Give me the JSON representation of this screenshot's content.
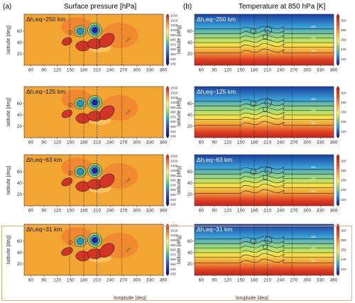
{
  "figure": {
    "left_label": "(a)",
    "left_title": "Surface pressure [hPa]",
    "right_label": "(b)",
    "right_title": "Temperature at 850 hPa [K]"
  },
  "chart_data": {
    "type": "heatmap",
    "panels": [
      {
        "column": "a",
        "resolution_text": "Δh,eq~250 km",
        "delta_km": 250
      },
      {
        "column": "a",
        "resolution_text": "Δh,eq~125 km",
        "delta_km": 125
      },
      {
        "column": "a",
        "resolution_text": "Δh,eq~63 km",
        "delta_km": 63
      },
      {
        "column": "a",
        "resolution_text": "Δh,eq~31 km",
        "delta_km": 31
      },
      {
        "column": "b",
        "resolution_text": "Δh,eq~250 km",
        "delta_km": 250
      },
      {
        "column": "b",
        "resolution_text": "Δh,eq~125 km",
        "delta_km": 125
      },
      {
        "column": "b",
        "resolution_text": "Δh,eq~63 km",
        "delta_km": 63
      },
      {
        "column": "b",
        "resolution_text": "Δh,eq~31 km",
        "delta_km": 31
      }
    ],
    "x_ticks": [
      60,
      90,
      120,
      150,
      180,
      210,
      240,
      270,
      300,
      330,
      360
    ],
    "y_ticks": [
      20,
      40,
      60
    ],
    "xlabel": "longitude [deg]",
    "ylabel": "latitude [deg]",
    "xlim": [
      45,
      360
    ],
    "ylim": [
      0,
      90
    ],
    "dashed_longitudes_a": [
      148,
      180,
      210,
      266
    ],
    "dashed_longitudes_b": [
      148,
      180,
      210,
      266
    ],
    "colorbar_a": {
      "ticks": [
        1030,
        1020,
        1010,
        1000,
        990,
        980,
        970,
        960,
        950,
        940,
        930
      ],
      "range": [
        930,
        1030
      ]
    },
    "colorbar_b": {
      "ticks": [
        300,
        280,
        260,
        240,
        220
      ],
      "range": [
        210,
        310
      ]
    },
    "contour_labels_a": [
      "1000"
    ],
    "contour_labels_b": [
      "260",
      "280",
      "300"
    ],
    "colors": {
      "orange": "#f5a623",
      "red": "#d7301f",
      "blue": "#2166ac",
      "green": "#8fd16a",
      "highlight_border": "#e9a877"
    }
  }
}
